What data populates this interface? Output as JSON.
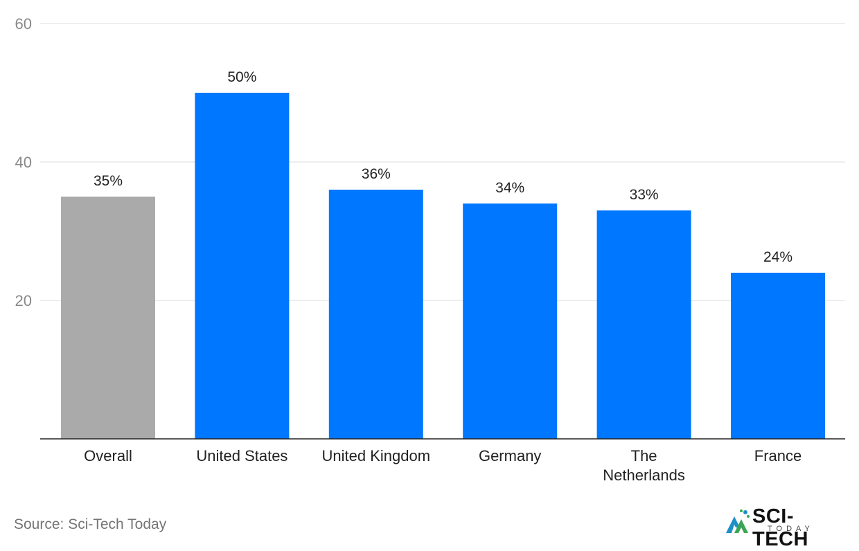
{
  "chart_data": {
    "type": "bar",
    "categories": [
      "Overall",
      "United States",
      "United Kingdom",
      "Germany",
      "The Netherlands",
      "France"
    ],
    "category_lines": [
      [
        "Overall"
      ],
      [
        "United States"
      ],
      [
        "United Kingdom"
      ],
      [
        "Germany"
      ],
      [
        "The",
        "Netherlands"
      ],
      [
        "France"
      ]
    ],
    "values": [
      35,
      50,
      36,
      34,
      33,
      24
    ],
    "data_labels": [
      "35%",
      "50%",
      "36%",
      "34%",
      "33%",
      "24%"
    ],
    "bar_colors": [
      "#aaaaaa",
      "#0077ff",
      "#0077ff",
      "#0077ff",
      "#0077ff",
      "#0077ff"
    ],
    "ylim": [
      0,
      60
    ],
    "yticks": [
      20,
      40,
      60
    ],
    "grid": true,
    "title": "",
    "xlabel": "",
    "ylabel": ""
  },
  "source": "Source: Sci-Tech Today",
  "logo": {
    "word": "SCI-TECH",
    "sub": "TODAY",
    "icon": "sci-tech-logo-icon",
    "colors": [
      "#1e90c8",
      "#3aa655",
      "#111111"
    ]
  }
}
